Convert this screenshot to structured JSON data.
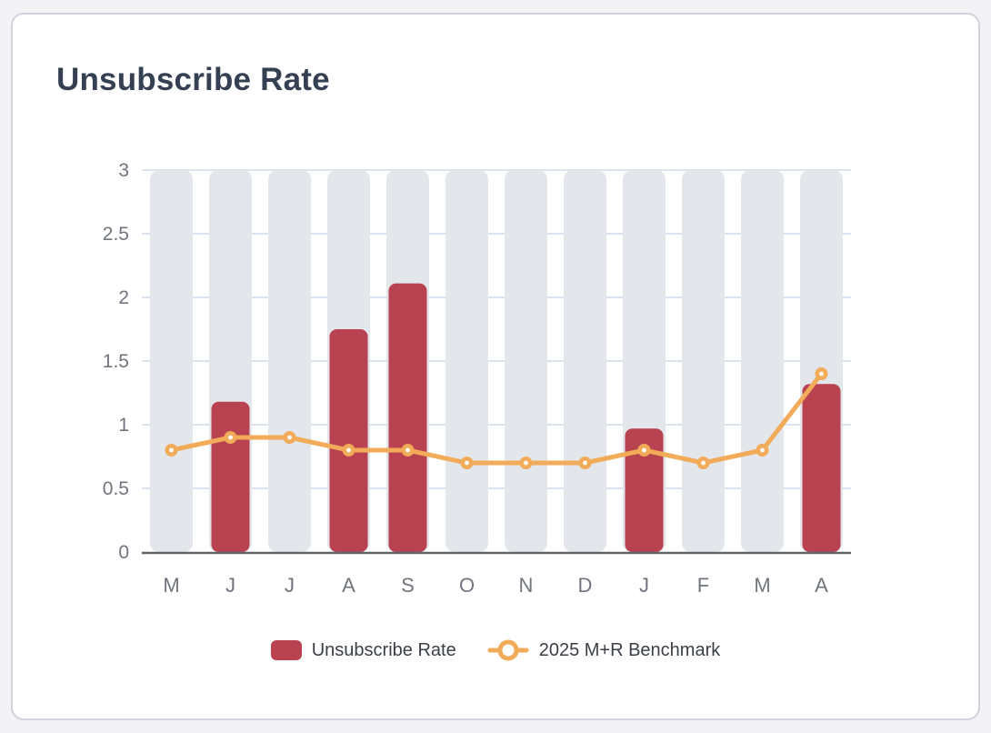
{
  "page": {
    "title": "Unsubscribe Rate"
  },
  "legend": {
    "bar_label": "Unsubscribe Rate",
    "line_label": "2025 M+R Benchmark"
  },
  "colors": {
    "page_bg": "#f3f3f5",
    "card_bg": "#ffffff",
    "card_border": "#ced3dc",
    "title_text": "#364053",
    "bar": "#b8424f",
    "line": "#f2ab59",
    "marker_center": "#ffffff",
    "band": "#e3e6eb",
    "grid": "#dde3ee",
    "axis_label": "#70757e",
    "baseline": "#5f6468",
    "legend_text": "#3a3f46"
  },
  "chart_data": {
    "type": "bar",
    "title": "Unsubscribe Rate",
    "categories": [
      "M",
      "J",
      "J",
      "A",
      "S",
      "O",
      "N",
      "D",
      "J",
      "F",
      "M",
      "A"
    ],
    "series": [
      {
        "name": "Unsubscribe Rate",
        "type": "bar",
        "values": [
          null,
          1.18,
          null,
          1.75,
          2.11,
          null,
          null,
          null,
          0.97,
          null,
          null,
          1.32
        ]
      },
      {
        "name": "2025 M+R Benchmark",
        "type": "line",
        "values": [
          0.8,
          0.9,
          0.9,
          0.8,
          0.8,
          0.7,
          0.7,
          0.7,
          0.8,
          0.7,
          0.8,
          1.4
        ]
      }
    ],
    "xlabel": "",
    "ylabel": "",
    "ylim": [
      0,
      3
    ],
    "yticks": [
      0,
      0.5,
      1,
      1.5,
      2,
      2.5,
      3
    ],
    "grid": true,
    "legend_position": "bottom"
  }
}
